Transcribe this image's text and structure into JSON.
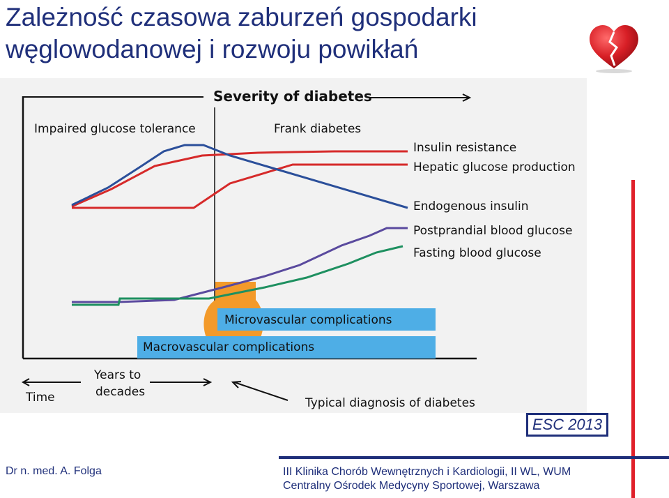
{
  "slide": {
    "title_line1": "Zależność czasowa zaburzeń gospodarki",
    "title_line2": "węglowodanowej i rozwoju powikłań",
    "heart_icon": "broken-heart-icon",
    "accent_color": "#1f2f7a",
    "source_badge": "ESC 2013",
    "footer_left": "Dr n. med. A. Folga",
    "footer_right_line1": "III  Klinika Chorób Wewnętrznych i Kardiologii, II WL, WUM",
    "footer_right_line2": "Centralny Ośrodek Medycyny Sportowej, Warszawa"
  },
  "diagram": {
    "severity_label": "Severity of diabetes",
    "phase_left": "Impaired glucose tolerance",
    "phase_right": "Frank diabetes",
    "curves": [
      {
        "label": "Insulin resistance",
        "color": "#d62a2a"
      },
      {
        "label": "Hepatic glucose production",
        "color": "#d62a2a"
      },
      {
        "label": "Endogenous insulin",
        "color": "#2b4f9a"
      },
      {
        "label": "Postprandial blood glucose",
        "color": "#5a4a9e"
      },
      {
        "label": "Fasting blood glucose",
        "color": "#1e9060"
      }
    ],
    "micro_label": "Microvascular complications",
    "macro_label": "Macrovascular complications",
    "bar_color": "#4eaee6",
    "blob_color": "#f39a2a",
    "time_label": "Time",
    "years_line1": "Years to",
    "years_line2": "decades",
    "diagnosis_label": "Typical diagnosis of diabetes"
  }
}
